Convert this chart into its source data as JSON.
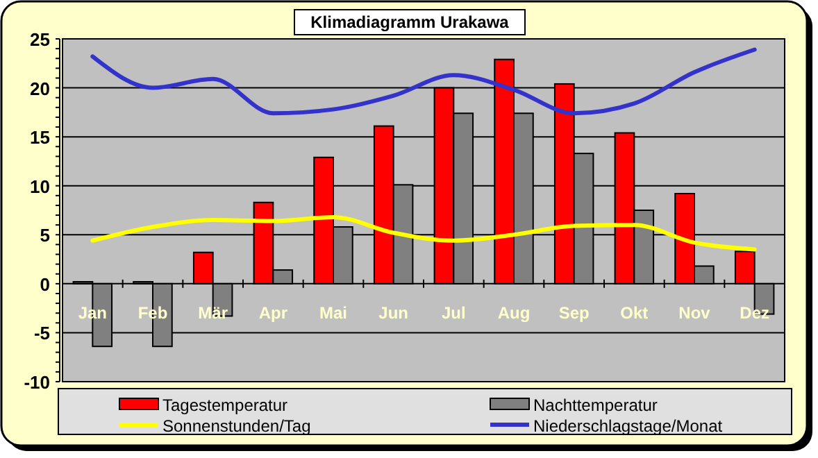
{
  "chart_data": {
    "type": "bar",
    "title": "Klimadiagramm Urakawa",
    "categories": [
      "Jan",
      "Feb",
      "Mär",
      "Apr",
      "Mai",
      "Jun",
      "Jul",
      "Aug",
      "Sep",
      "Okt",
      "Nov",
      "Dez"
    ],
    "series": [
      {
        "name": "Tagestemperatur",
        "color": "#ff0000",
        "values": [
          0.2,
          0.2,
          3.2,
          8.3,
          12.9,
          16.1,
          20.0,
          22.9,
          20.4,
          15.4,
          9.2,
          3.3
        ]
      },
      {
        "name": "Nachttemperatur",
        "color": "#808080",
        "values": [
          -6.4,
          -6.4,
          -3.3,
          1.4,
          5.8,
          10.1,
          17.4,
          17.4,
          13.3,
          7.5,
          1.8,
          -3.1
        ]
      },
      {
        "name": "Sonnenstunden/Tag",
        "type": "line",
        "color": "#ffff00",
        "values": [
          4.4,
          5.8,
          6.5,
          6.4,
          6.8,
          5.2,
          4.4,
          5.0,
          5.9,
          6.0,
          4.2,
          3.5
        ]
      },
      {
        "name": "Niederschlagstage/Monat",
        "type": "line",
        "color": "#3333cc",
        "values": [
          23.2,
          20.0,
          20.9,
          17.4,
          17.8,
          19.2,
          21.3,
          19.8,
          17.4,
          18.4,
          21.6,
          23.9
        ]
      }
    ],
    "ylim": [
      -10,
      25
    ],
    "yticks": [
      -10,
      -5,
      0,
      5,
      10,
      15,
      20,
      25
    ],
    "grid": "y",
    "legend": "bottom"
  }
}
